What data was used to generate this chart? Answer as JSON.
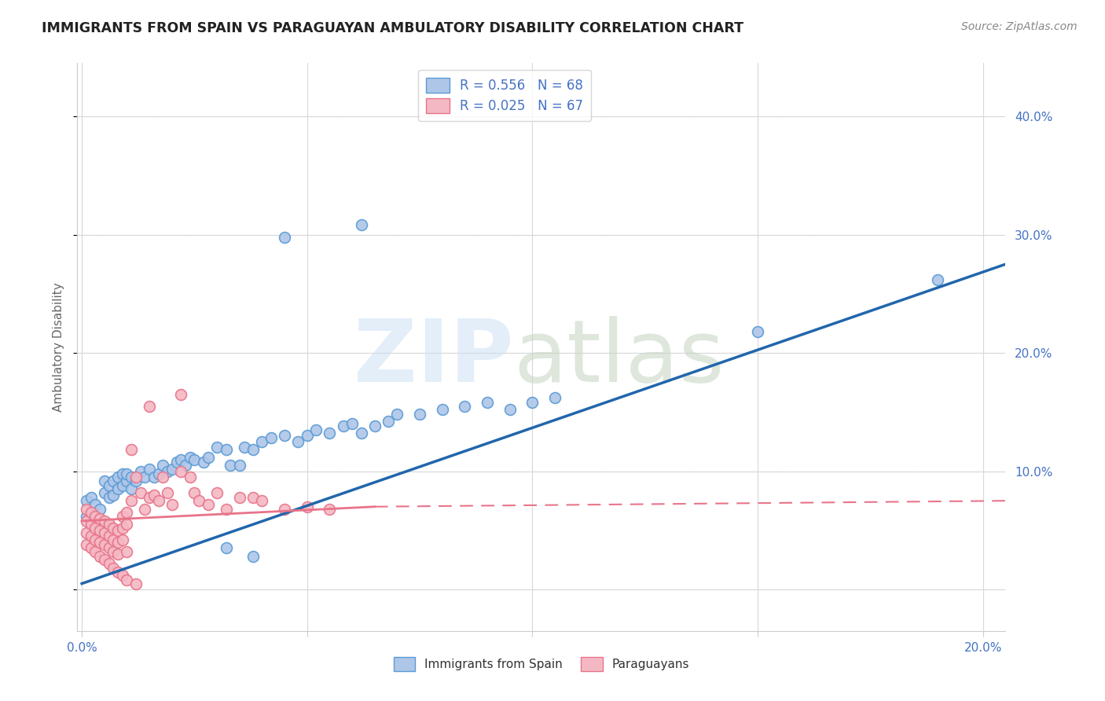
{
  "title": "IMMIGRANTS FROM SPAIN VS PARAGUAYAN AMBULATORY DISABILITY CORRELATION CHART",
  "source": "Source: ZipAtlas.com",
  "ylabel": "Ambulatory Disability",
  "xlim": [
    -0.001,
    0.205
  ],
  "ylim": [
    -0.035,
    0.445
  ],
  "xticks": [
    0.0,
    0.05,
    0.1,
    0.15,
    0.2
  ],
  "xtick_labels": [
    "0.0%",
    "",
    "",
    "",
    "20.0%"
  ],
  "yticks": [
    0.0,
    0.1,
    0.2,
    0.3,
    0.4
  ],
  "ytick_labels": [
    "",
    "10.0%",
    "20.0%",
    "30.0%",
    "40.0%"
  ],
  "blue_face": "#aec6e8",
  "blue_edge": "#5b9bd5",
  "pink_face": "#f4b8c4",
  "pink_edge": "#e8748a",
  "blue_line_color": "#2166ac",
  "pink_line_color": "#e8748a",
  "legend_text_color": "#4472c4",
  "grid_color": "#d8d8d8",
  "title_color": "#222222",
  "source_color": "#888888",
  "ylabel_color": "#666666",
  "blue_line": {
    "x0": 0.0,
    "y0": 0.005,
    "x1": 0.205,
    "y1": 0.275
  },
  "pink_line_solid": {
    "x0": 0.0,
    "y0": 0.058,
    "x1": 0.065,
    "y1": 0.07
  },
  "pink_line_dash": {
    "x0": 0.065,
    "y0": 0.07,
    "x1": 0.205,
    "y1": 0.075
  },
  "blue_scatter": [
    [
      0.001,
      0.075
    ],
    [
      0.001,
      0.062
    ],
    [
      0.002,
      0.078
    ],
    [
      0.002,
      0.065
    ],
    [
      0.003,
      0.072
    ],
    [
      0.003,
      0.058
    ],
    [
      0.004,
      0.068
    ],
    [
      0.004,
      0.055
    ],
    [
      0.005,
      0.082
    ],
    [
      0.005,
      0.092
    ],
    [
      0.006,
      0.078
    ],
    [
      0.006,
      0.088
    ],
    [
      0.007,
      0.092
    ],
    [
      0.007,
      0.08
    ],
    [
      0.008,
      0.095
    ],
    [
      0.008,
      0.085
    ],
    [
      0.009,
      0.098
    ],
    [
      0.009,
      0.088
    ],
    [
      0.01,
      0.092
    ],
    [
      0.01,
      0.098
    ],
    [
      0.011,
      0.095
    ],
    [
      0.011,
      0.085
    ],
    [
      0.012,
      0.092
    ],
    [
      0.013,
      0.1
    ],
    [
      0.014,
      0.095
    ],
    [
      0.015,
      0.102
    ],
    [
      0.016,
      0.095
    ],
    [
      0.017,
      0.098
    ],
    [
      0.018,
      0.105
    ],
    [
      0.019,
      0.1
    ],
    [
      0.02,
      0.102
    ],
    [
      0.021,
      0.108
    ],
    [
      0.022,
      0.11
    ],
    [
      0.023,
      0.105
    ],
    [
      0.024,
      0.112
    ],
    [
      0.025,
      0.11
    ],
    [
      0.027,
      0.108
    ],
    [
      0.028,
      0.112
    ],
    [
      0.03,
      0.12
    ],
    [
      0.032,
      0.118
    ],
    [
      0.033,
      0.105
    ],
    [
      0.035,
      0.105
    ],
    [
      0.036,
      0.12
    ],
    [
      0.038,
      0.118
    ],
    [
      0.04,
      0.125
    ],
    [
      0.042,
      0.128
    ],
    [
      0.045,
      0.13
    ],
    [
      0.048,
      0.125
    ],
    [
      0.05,
      0.13
    ],
    [
      0.052,
      0.135
    ],
    [
      0.055,
      0.132
    ],
    [
      0.058,
      0.138
    ],
    [
      0.06,
      0.14
    ],
    [
      0.062,
      0.132
    ],
    [
      0.065,
      0.138
    ],
    [
      0.068,
      0.142
    ],
    [
      0.07,
      0.148
    ],
    [
      0.075,
      0.148
    ],
    [
      0.08,
      0.152
    ],
    [
      0.085,
      0.155
    ],
    [
      0.09,
      0.158
    ],
    [
      0.095,
      0.152
    ],
    [
      0.1,
      0.158
    ],
    [
      0.105,
      0.162
    ],
    [
      0.15,
      0.218
    ],
    [
      0.19,
      0.262
    ],
    [
      0.045,
      0.298
    ],
    [
      0.062,
      0.308
    ],
    [
      0.032,
      0.035
    ],
    [
      0.038,
      0.028
    ]
  ],
  "pink_scatter": [
    [
      0.001,
      0.068
    ],
    [
      0.001,
      0.058
    ],
    [
      0.001,
      0.048
    ],
    [
      0.001,
      0.038
    ],
    [
      0.002,
      0.065
    ],
    [
      0.002,
      0.055
    ],
    [
      0.002,
      0.045
    ],
    [
      0.002,
      0.035
    ],
    [
      0.003,
      0.062
    ],
    [
      0.003,
      0.052
    ],
    [
      0.003,
      0.042
    ],
    [
      0.003,
      0.032
    ],
    [
      0.004,
      0.06
    ],
    [
      0.004,
      0.05
    ],
    [
      0.004,
      0.04
    ],
    [
      0.004,
      0.028
    ],
    [
      0.005,
      0.058
    ],
    [
      0.005,
      0.048
    ],
    [
      0.005,
      0.038
    ],
    [
      0.005,
      0.025
    ],
    [
      0.006,
      0.055
    ],
    [
      0.006,
      0.045
    ],
    [
      0.006,
      0.035
    ],
    [
      0.006,
      0.022
    ],
    [
      0.007,
      0.052
    ],
    [
      0.007,
      0.042
    ],
    [
      0.007,
      0.032
    ],
    [
      0.007,
      0.018
    ],
    [
      0.008,
      0.05
    ],
    [
      0.008,
      0.04
    ],
    [
      0.008,
      0.03
    ],
    [
      0.008,
      0.015
    ],
    [
      0.009,
      0.062
    ],
    [
      0.009,
      0.052
    ],
    [
      0.009,
      0.042
    ],
    [
      0.009,
      0.012
    ],
    [
      0.01,
      0.065
    ],
    [
      0.01,
      0.055
    ],
    [
      0.01,
      0.032
    ],
    [
      0.01,
      0.008
    ],
    [
      0.011,
      0.118
    ],
    [
      0.011,
      0.075
    ],
    [
      0.012,
      0.095
    ],
    [
      0.012,
      0.005
    ],
    [
      0.013,
      0.082
    ],
    [
      0.014,
      0.068
    ],
    [
      0.015,
      0.078
    ],
    [
      0.015,
      0.155
    ],
    [
      0.016,
      0.08
    ],
    [
      0.017,
      0.075
    ],
    [
      0.018,
      0.095
    ],
    [
      0.019,
      0.082
    ],
    [
      0.02,
      0.072
    ],
    [
      0.022,
      0.1
    ],
    [
      0.022,
      0.165
    ],
    [
      0.024,
      0.095
    ],
    [
      0.025,
      0.082
    ],
    [
      0.026,
      0.075
    ],
    [
      0.028,
      0.072
    ],
    [
      0.03,
      0.082
    ],
    [
      0.032,
      0.068
    ],
    [
      0.035,
      0.078
    ],
    [
      0.038,
      0.078
    ],
    [
      0.04,
      0.075
    ],
    [
      0.045,
      0.068
    ],
    [
      0.05,
      0.07
    ],
    [
      0.055,
      0.068
    ]
  ]
}
